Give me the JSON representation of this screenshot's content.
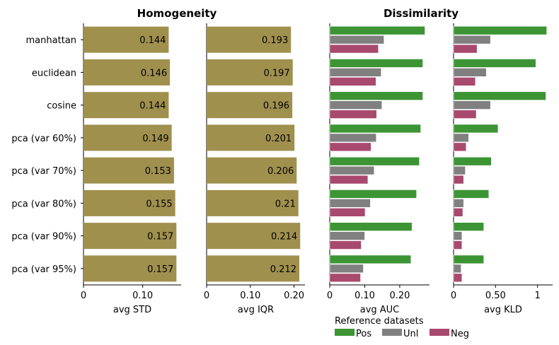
{
  "titles": {
    "homogeneity": "Homogeneity",
    "dissimilarity": "Dissimilarity"
  },
  "colors": {
    "homogeneity_bar": "#a0904e",
    "Pos": "#3d9434",
    "Unl": "#808080",
    "Neg": "#a8496e"
  },
  "legend": {
    "title": "Reference datasets",
    "entries": [
      "Pos",
      "Unl",
      "Neg"
    ]
  },
  "chart_data": [
    {
      "type": "bar",
      "orientation": "horizontal",
      "categories": [
        "manhattan",
        "euclidean",
        "cosine",
        "pca (var 60%)",
        "pca (var 70%)",
        "pca (var 80%)",
        "pca (var 90%)",
        "pca (var 95%)"
      ],
      "values": [
        0.144,
        0.146,
        0.144,
        0.149,
        0.153,
        0.155,
        0.157,
        0.157
      ],
      "value_labels": [
        "0.144",
        "0.146",
        "0.144",
        "0.149",
        "0.153",
        "0.155",
        "0.157",
        "0.157"
      ],
      "xlabel": "avg STD",
      "xticks": [
        0,
        0.1
      ],
      "xtick_labels": [
        "0",
        "0.10"
      ],
      "xlim": [
        0,
        0.165
      ]
    },
    {
      "type": "bar",
      "orientation": "horizontal",
      "categories": [
        "manhattan",
        "euclidean",
        "cosine",
        "pca (var 60%)",
        "pca (var 70%)",
        "pca (var 80%)",
        "pca (var 90%)",
        "pca (var 95%)"
      ],
      "values": [
        0.193,
        0.197,
        0.196,
        0.201,
        0.206,
        0.21,
        0.214,
        0.212
      ],
      "value_labels": [
        "0.193",
        "0.197",
        "0.196",
        "0.201",
        "0.206",
        "0.21",
        "0.214",
        "0.212"
      ],
      "xlabel": "avg IQR",
      "xticks": [
        0,
        0.1,
        0.2
      ],
      "xtick_labels": [
        "0",
        "0.10",
        "0.20"
      ],
      "xlim": [
        0,
        0.225
      ]
    },
    {
      "type": "bar",
      "orientation": "horizontal",
      "categories": [
        "manhattan",
        "euclidean",
        "cosine",
        "pca (var 60%)",
        "pca (var 70%)",
        "pca (var 80%)",
        "pca (var 90%)",
        "pca (var 95%)"
      ],
      "series": [
        {
          "name": "Pos",
          "values": [
            0.272,
            0.266,
            0.266,
            0.26,
            0.256,
            0.248,
            0.235,
            0.232
          ]
        },
        {
          "name": "Unl",
          "values": [
            0.155,
            0.147,
            0.149,
            0.133,
            0.127,
            0.116,
            0.1,
            0.096
          ]
        },
        {
          "name": "Neg",
          "values": [
            0.139,
            0.132,
            0.134,
            0.118,
            0.109,
            0.101,
            0.09,
            0.088
          ]
        }
      ],
      "xlabel": "avg AUC",
      "xticks": [
        0,
        0.1,
        0.2
      ],
      "xtick_labels": [
        "0",
        "0.10",
        "0.20"
      ],
      "xlim": [
        0,
        0.285
      ]
    },
    {
      "type": "bar",
      "orientation": "horizontal",
      "categories": [
        "manhattan",
        "euclidean",
        "cosine",
        "pca (var 60%)",
        "pca (var 70%)",
        "pca (var 80%)",
        "pca (var 90%)",
        "pca (var 95%)"
      ],
      "series": [
        {
          "name": "Pos",
          "values": [
            1.11,
            0.98,
            1.1,
            0.53,
            0.45,
            0.42,
            0.36,
            0.36
          ]
        },
        {
          "name": "Unl",
          "values": [
            0.44,
            0.39,
            0.44,
            0.18,
            0.14,
            0.12,
            0.1,
            0.09
          ]
        },
        {
          "name": "Neg",
          "values": [
            0.28,
            0.26,
            0.27,
            0.15,
            0.12,
            0.11,
            0.1,
            0.1
          ]
        }
      ],
      "xlabel": "avg KLD",
      "xticks": [
        0,
        0.5,
        1
      ],
      "xtick_labels": [
        "0",
        "0.50",
        "1"
      ],
      "xlim": [
        0,
        1.18
      ]
    }
  ]
}
